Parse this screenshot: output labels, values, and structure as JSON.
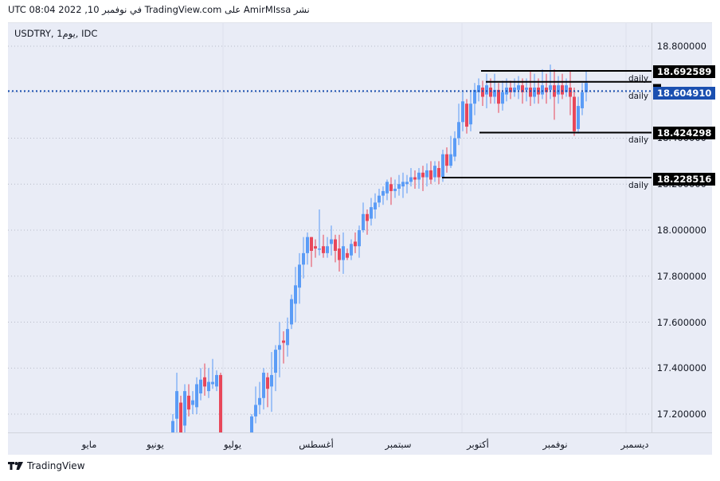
{
  "header": {
    "published_line": "UTC في نوفمبر 10, 2022 08:04 TradingView.com على AmirMIssa نشر"
  },
  "chart": {
    "symbol_line": "USDTRY, 1يوم, IDC",
    "colors": {
      "background": "#e9ecf6",
      "up": "#5b9cf6",
      "down": "#e8475a",
      "level": "#000000",
      "current": "#1a4fb0"
    }
  },
  "chart_data": {
    "type": "candlestick",
    "title": "USDTRY, 1D, IDC",
    "xlabel": "",
    "ylabel": "",
    "ylim": [
      17.1,
      18.9
    ],
    "y_ticks": [
      "18.800000",
      "18.600000",
      "18.400000",
      "18.200000",
      "18.000000",
      "17.800000",
      "17.600000",
      "17.400000",
      "17.200000"
    ],
    "x_ticks": [
      "مايو",
      "يونيو",
      "يوليو",
      "أغسطس",
      "سبتمبر",
      "أكتوبر",
      "نوفمبر",
      "ديسمبر"
    ],
    "horizontal_levels": [
      {
        "price": 18.692589,
        "label": "daily"
      },
      {
        "price": 18.645,
        "label": "daily"
      },
      {
        "price": 18.424298,
        "label": "daily"
      },
      {
        "price": 18.228516,
        "label": "daily"
      }
    ],
    "current_price": 18.60491,
    "trend": "Strong uptrend from ~17.1 (June) to ~18.6 (Nov), consolidating 18.42–18.69 in Oct–Nov"
  },
  "price_axis": {
    "ticks": [
      "18.800000",
      "18.600000",
      "18.400000",
      "18.200000",
      "18.000000",
      "17.800000",
      "17.600000",
      "17.400000",
      "17.200000"
    ],
    "tags": [
      "18.692589",
      "18.604910",
      "18.424298",
      "18.228516"
    ]
  },
  "level_labels": [
    "daily",
    "daily",
    "daily",
    "daily"
  ],
  "time_axis": {
    "months": [
      "مايو",
      "يونيو",
      "يوليو",
      "أغسطس",
      "سبتمبر",
      "أكتوبر",
      "نوفمبر",
      "ديسمبر"
    ]
  },
  "footer": {
    "brand": "TradingView"
  }
}
